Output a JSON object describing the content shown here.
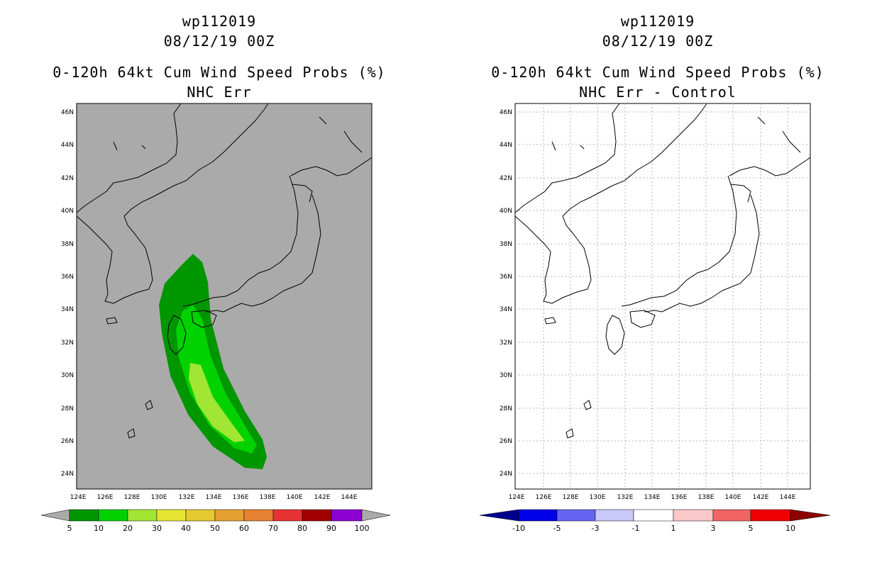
{
  "left": {
    "title_line1": "wp112019",
    "title_line2": "08/12/19 00Z",
    "title_line3": "0-120h 64kt Cum Wind Speed Probs (%)",
    "title_line4": "NHC Err",
    "lat_labels": [
      "46N",
      "44N",
      "42N",
      "40N",
      "38N",
      "36N",
      "34N",
      "32N",
      "30N",
      "28N",
      "26N",
      "24N"
    ],
    "lon_labels": [
      "124E",
      "126E",
      "128E",
      "130E",
      "132E",
      "134E",
      "136E",
      "138E",
      "140E",
      "142E",
      "144E"
    ],
    "colorbar": {
      "labels": [
        "5",
        "10",
        "20",
        "30",
        "40",
        "50",
        "60",
        "70",
        "80",
        "90",
        "100"
      ],
      "colors": [
        "#009600",
        "#00d200",
        "#a0e632",
        "#e6e632",
        "#e6c832",
        "#e6a032",
        "#e68232",
        "#e63232",
        "#a00000",
        "#8c00d2"
      ]
    }
  },
  "right": {
    "title_line1": "wp112019",
    "title_line2": "08/12/19 00Z",
    "title_line3": "0-120h 64kt Cum Wind Speed Probs (%)",
    "title_line4": "NHC Err - Control",
    "lat_labels": [
      "46N",
      "44N",
      "42N",
      "40N",
      "38N",
      "36N",
      "34N",
      "32N",
      "30N",
      "28N",
      "26N",
      "24N"
    ],
    "lon_labels": [
      "124E",
      "126E",
      "128E",
      "130E",
      "132E",
      "134E",
      "136E",
      "138E",
      "140E",
      "142E",
      "144E"
    ],
    "colorbar": {
      "labels": [
        "-10",
        "-5",
        "-3",
        "-1",
        "1",
        "3",
        "5",
        "10"
      ],
      "colors": [
        "#0000e6",
        "#6464f0",
        "#c8c8fa",
        "#ffffff",
        "#fac8c8",
        "#f06464",
        "#f00000"
      ]
    }
  }
}
